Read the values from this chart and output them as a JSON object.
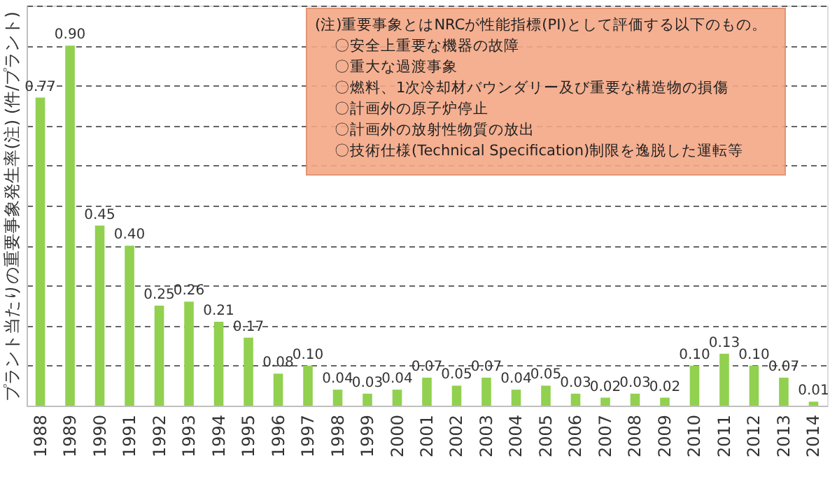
{
  "chart_data": {
    "type": "bar",
    "ylabel": "プラント当たりの重要事象発生率(注) (件/プラント)",
    "categories": [
      "1988",
      "1989",
      "1990",
      "1991",
      "1992",
      "1993",
      "1994",
      "1995",
      "1996",
      "1997",
      "1998",
      "1999",
      "2000",
      "2001",
      "2002",
      "2003",
      "2004",
      "2005",
      "2006",
      "2007",
      "2008",
      "2009",
      "2010",
      "2011",
      "2012",
      "2013",
      "2014"
    ],
    "values": [
      0.77,
      0.9,
      0.45,
      0.4,
      0.25,
      0.26,
      0.21,
      0.17,
      0.08,
      0.1,
      0.04,
      0.03,
      0.04,
      0.07,
      0.05,
      0.07,
      0.04,
      0.05,
      0.03,
      0.02,
      0.03,
      0.02,
      0.1,
      0.13,
      0.1,
      0.07,
      0.01
    ],
    "color": "#92d050",
    "value_labels": [
      "0.77",
      "0.90",
      "0.45",
      "0.40",
      "0.25",
      "0.26",
      "0.21",
      "0.17",
      "0.08",
      "0.10",
      "0.04",
      "0.03",
      "0.04",
      "0.07",
      "0.05",
      "0.07",
      "0.04",
      "0.05",
      "0.03",
      "0.02",
      "0.03",
      "0.02",
      "0.10",
      "0.13",
      "0.10",
      "0.07",
      "0.01"
    ],
    "ylim": [
      0,
      1
    ],
    "tick_labels": "x",
    "grid": "y",
    "annotations": [
      "(注)重要事象とはNRCが性能指標(PI)として評価する以下のもの。",
      "〇安全上重要な機器の故障",
      "〇重大な過渡事象",
      "〇燃料、1次冷却材バウンダリー及び重要な構造物の損傷",
      "〇計画外の原子炉停止",
      "〇計画外の放射性物質の放出",
      "〇技術仕様(Technical Specification)制限を逸脱した運転等"
    ]
  }
}
